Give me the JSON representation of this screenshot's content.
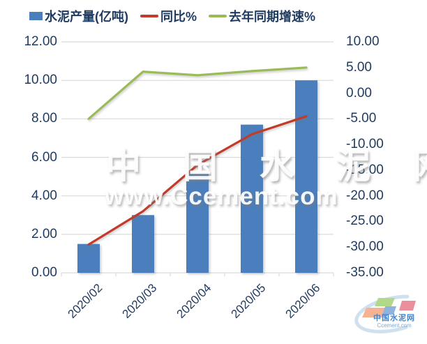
{
  "legend": {
    "items": [
      {
        "label": "水泥产量(亿吨)",
        "marker": "bar",
        "color": "#4a7ebc"
      },
      {
        "label": "同比%",
        "marker": "line",
        "color": "#c13b2c"
      },
      {
        "label": "去年同期增速%",
        "marker": "line",
        "color": "#9bbb59"
      }
    ]
  },
  "chart_data": {
    "type": "bar",
    "subtype": "combo-bar-line",
    "title": "",
    "categories": [
      "2020/02",
      "2020/03",
      "2020/04",
      "2020/05",
      "2020/06"
    ],
    "series": [
      {
        "name": "水泥产量(亿吨)",
        "type": "bar",
        "axis": "left",
        "color": "#4a7ebc",
        "values": [
          1.5,
          3.0,
          5.2,
          7.7,
          10.0
        ]
      },
      {
        "name": "同比%",
        "type": "line",
        "axis": "right",
        "color": "#c13b2c",
        "values": [
          -29.5,
          -23.0,
          -14.0,
          -8.0,
          -4.5
        ]
      },
      {
        "name": "去年同期增速%",
        "type": "line",
        "axis": "right",
        "color": "#9bbb59",
        "values": [
          -5.0,
          4.2,
          3.5,
          4.3,
          5.0
        ]
      }
    ],
    "left_axis": {
      "min": 0,
      "max": 12,
      "ticks": [
        "12.00",
        "10.00",
        "8.00",
        "6.00",
        "4.00",
        "2.00",
        "0.00"
      ]
    },
    "right_axis": {
      "min": -35,
      "max": 10,
      "ticks": [
        "10.00",
        "5.00",
        "0.00",
        "-5.00",
        "-10.00",
        "-15.00",
        "-20.00",
        "-25.00",
        "-30.00",
        "-35.00"
      ]
    },
    "grid": true,
    "grid_color": "#d9d9d9",
    "legend_position": "top",
    "tick_label_color": "#1e3a5f"
  },
  "watermark": {
    "title": "中 国 水 泥 网",
    "url": "www.Ccement.com"
  },
  "logo": {
    "name": "中国水泥网",
    "site": "Ccement.com",
    "colors": {
      "swoosh": "#cfe0ef",
      "green": "#b2d98a",
      "salmon": "#f5b393",
      "blue": "#8fb3dd",
      "pink": "#ec8f9c",
      "text": "#4a84c4",
      "subtext": "#7ba9d6"
    }
  }
}
